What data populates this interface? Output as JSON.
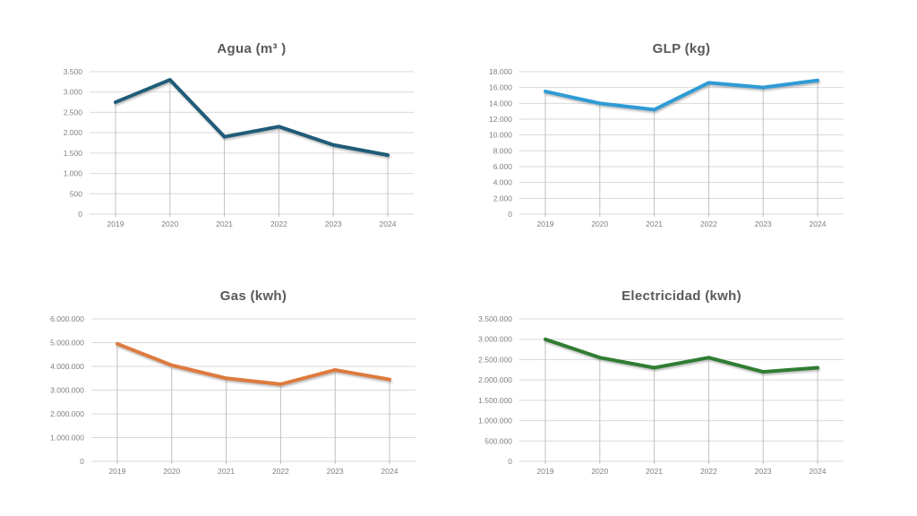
{
  "page": {
    "background_color": "#ffffff",
    "grid_color": "#D9D9D9",
    "dropline_color": "#C0C0C0",
    "axis_text_color": "#7F7F7F",
    "title_color": "#595959"
  },
  "chart_data": [
    {
      "id": "agua",
      "type": "line",
      "title": "Agua (m³ )",
      "categories": [
        "2019",
        "2020",
        "2021",
        "2022",
        "2023",
        "2024"
      ],
      "values": [
        2750,
        3300,
        1900,
        2150,
        1700,
        1450
      ],
      "ylim": [
        0,
        3500
      ],
      "ytick_step": 500,
      "ytick_labels": [
        "0",
        "500",
        "1.000",
        "1.500",
        "2.000",
        "2.500",
        "3.000",
        "3.500"
      ],
      "line_color": "#1F5C78",
      "grid": true,
      "legend": "none"
    },
    {
      "id": "glp",
      "type": "line",
      "title": "GLP (kg)",
      "categories": [
        "2019",
        "2020",
        "2021",
        "2022",
        "2023",
        "2024"
      ],
      "values": [
        15500,
        14000,
        13200,
        16600,
        16000,
        16900
      ],
      "ylim": [
        0,
        18000
      ],
      "ytick_step": 2000,
      "ytick_labels": [
        "0",
        "2.000",
        "4.000",
        "6.000",
        "8.000",
        "10.000",
        "12.000",
        "14.000",
        "16.000",
        "18.000"
      ],
      "line_color": "#2E9BD5",
      "grid": true,
      "legend": "none"
    },
    {
      "id": "gas",
      "type": "line",
      "title": "Gas (kwh)",
      "categories": [
        "2019",
        "2020",
        "2021",
        "2022",
        "2023",
        "2024"
      ],
      "values": [
        4950000,
        4050000,
        3500000,
        3250000,
        3850000,
        3450000
      ],
      "ylim": [
        0,
        6000000
      ],
      "ytick_step": 1000000,
      "ytick_labels": [
        "0",
        "1.000.000",
        "2.000.000",
        "3.000.000",
        "4.000.000",
        "5.000.000",
        "6.000.000"
      ],
      "line_color": "#DE7A3E",
      "grid": true,
      "legend": "none"
    },
    {
      "id": "elec",
      "type": "line",
      "title": "Electricidad (kwh)",
      "categories": [
        "2019",
        "2020",
        "2021",
        "2022",
        "2023",
        "2024"
      ],
      "values": [
        3000000,
        2550000,
        2300000,
        2550000,
        2200000,
        2300000
      ],
      "ylim": [
        0,
        3500000
      ],
      "ytick_step": 500000,
      "ytick_labels": [
        "0",
        "500.000",
        "1.000.000",
        "1.500.000",
        "2.000.000",
        "2.500.000",
        "3.000.000",
        "3.500.000"
      ],
      "line_color": "#2F7D33",
      "grid": true,
      "legend": "none"
    }
  ]
}
